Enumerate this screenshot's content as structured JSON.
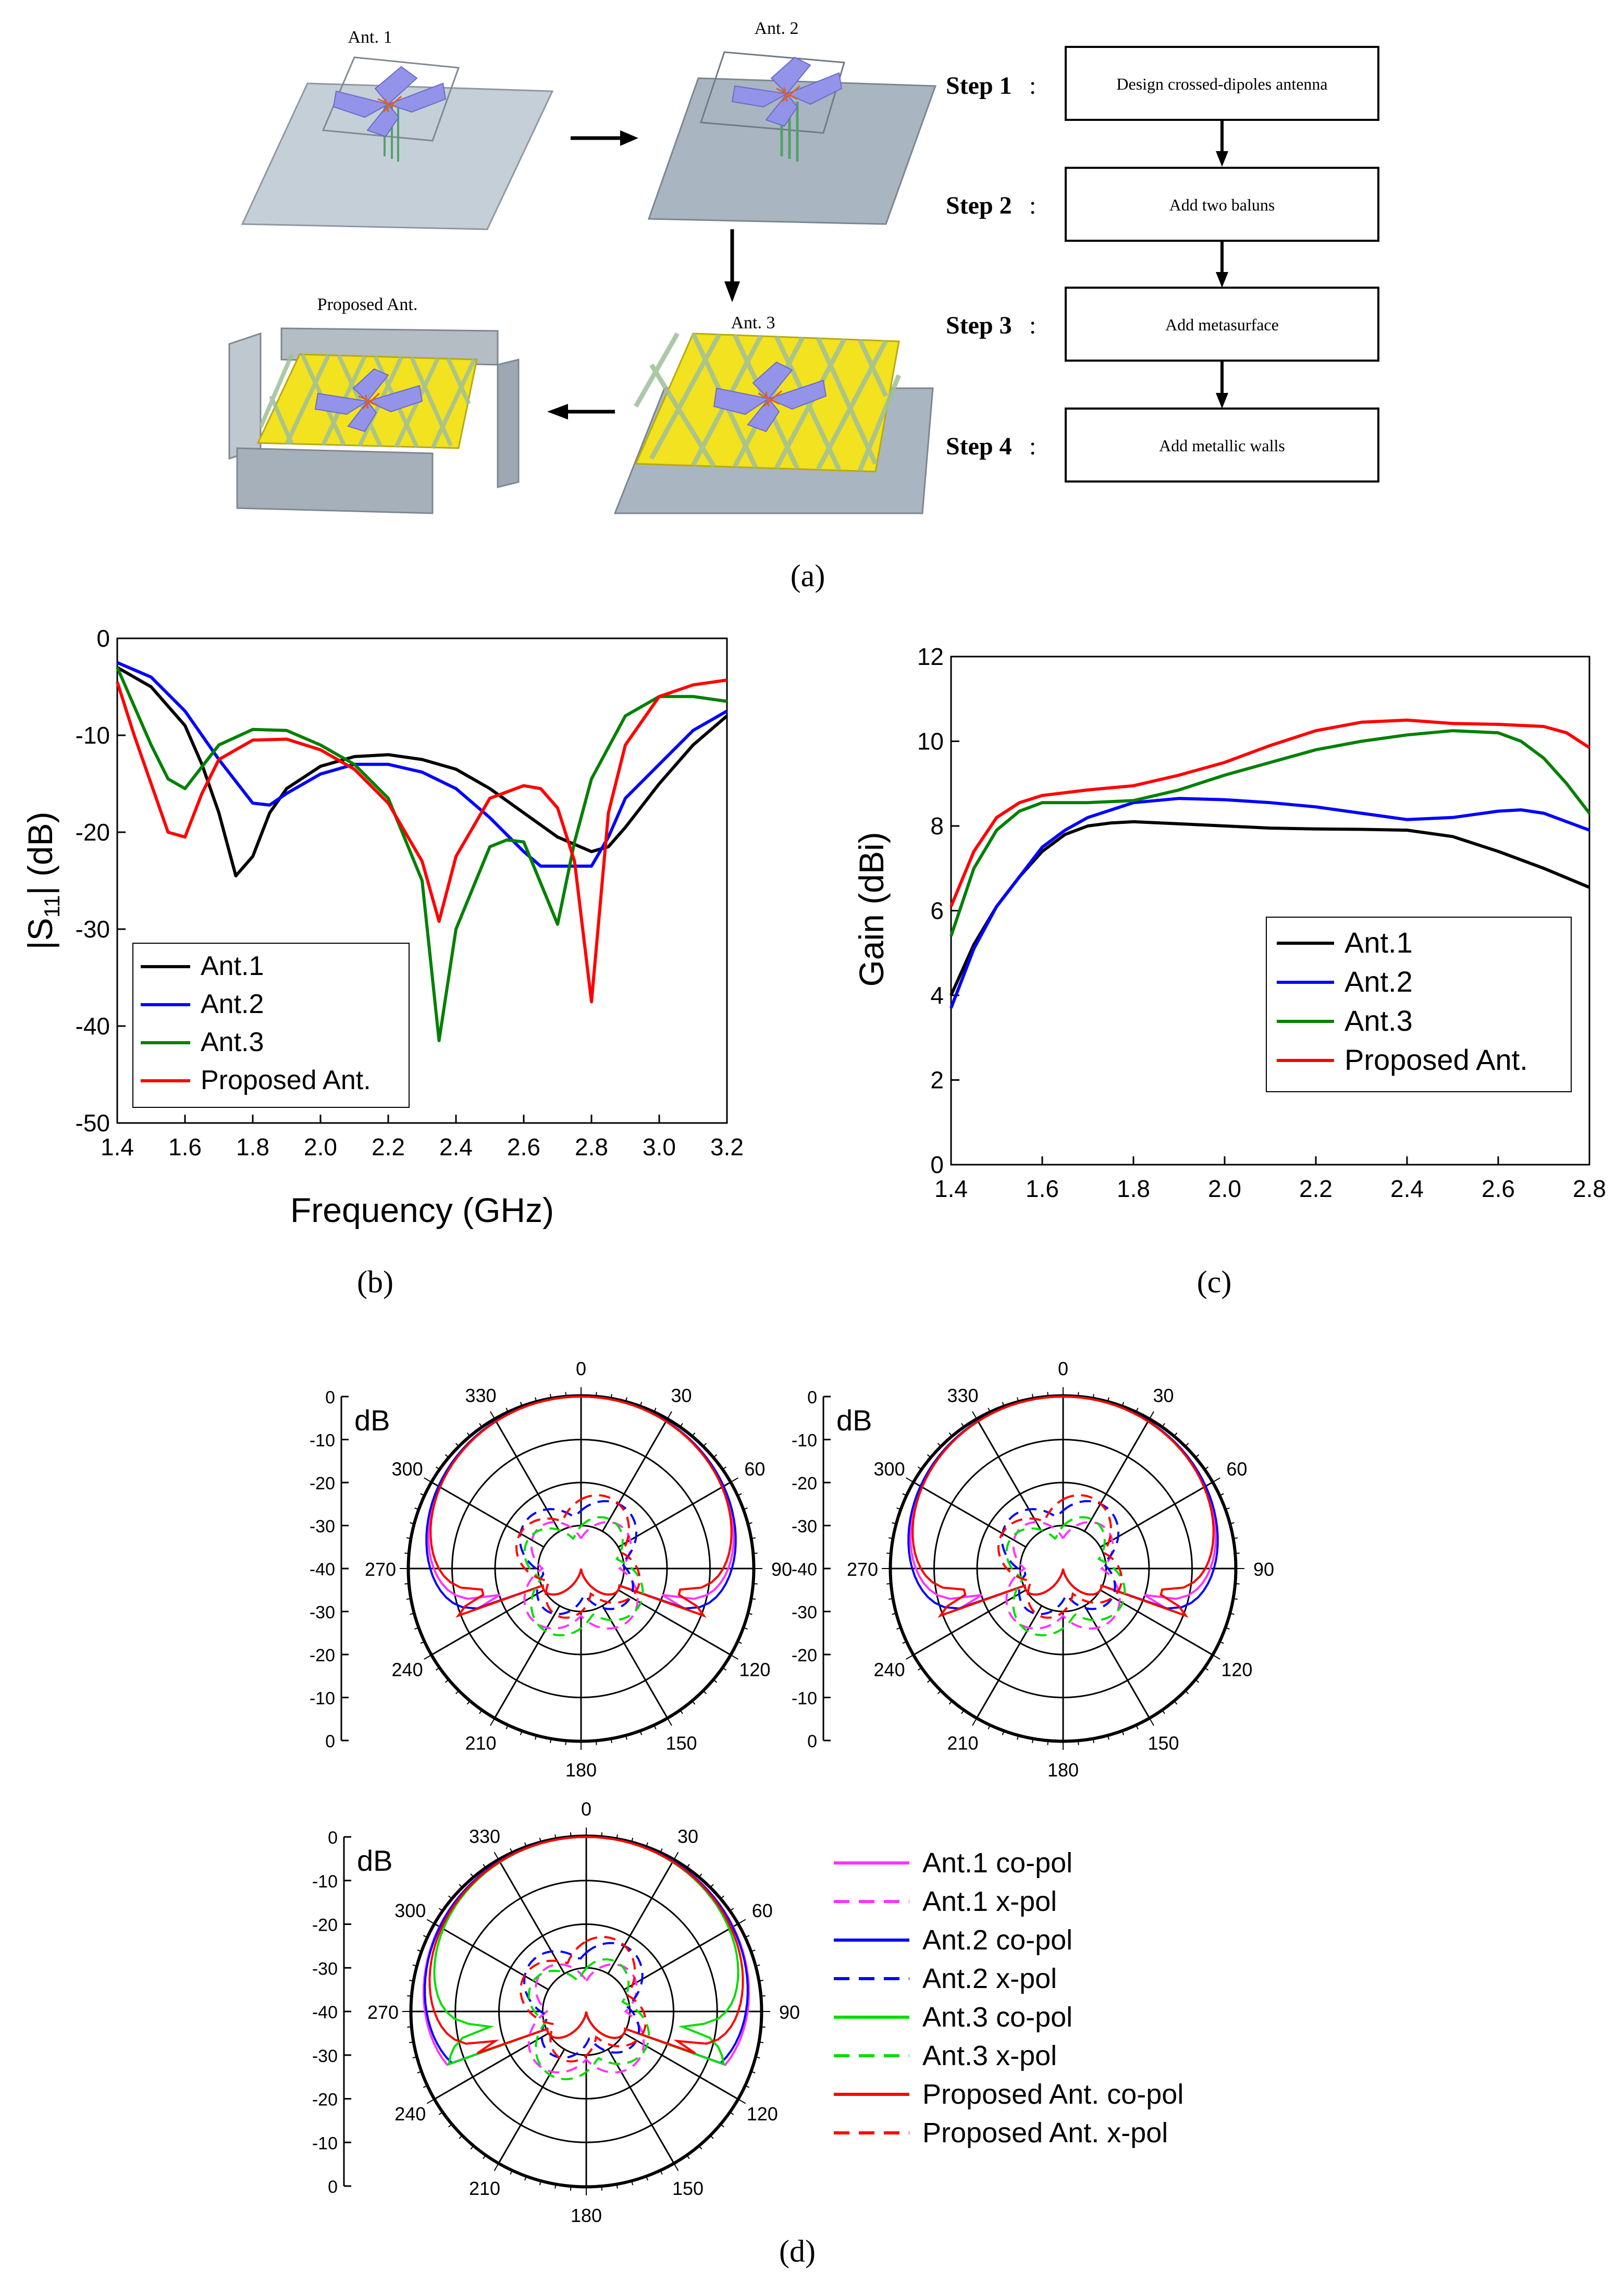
{
  "figure": {
    "panel_labels": {
      "a": "(a)",
      "b": "(b)",
      "c": "(c)",
      "d": "(d)"
    }
  },
  "panel_a": {
    "antenna_labels": {
      "ant1": "Ant. 1",
      "ant2": "Ant. 2",
      "ant3": "Ant. 3",
      "proposed": "Proposed Ant."
    },
    "steps": [
      {
        "label": "Step 1",
        "text": "Design crossed-dipoles antenna"
      },
      {
        "label": "Step 2",
        "text": "Add two baluns"
      },
      {
        "label": "Step 3",
        "text": "Add metasurface"
      },
      {
        "label": "Step 4",
        "text": "Add metallic walls"
      }
    ],
    "colon": ":",
    "colors": {
      "ground": "#b8c3cc",
      "ground_dark": "#8d98a2",
      "dipole": "#8f8fe6",
      "metasurface": "#f2e21f",
      "wall": "#b4bcc4"
    }
  },
  "chart_data": [
    {
      "id": "s11",
      "type": "line",
      "xlabel": "Frequency (GHz)",
      "ylabel_main": "|S",
      "ylabel_sub": "11",
      "ylabel_tail": "| (dB)",
      "xlim": [
        1.4,
        3.2
      ],
      "ylim": [
        -50,
        0
      ],
      "xticks": [
        "1.4",
        "1.6",
        "1.8",
        "2.0",
        "2.2",
        "2.4",
        "2.6",
        "2.8",
        "3.0",
        "3.2"
      ],
      "yticks": [
        "0",
        "-10",
        "-20",
        "-30",
        "-40",
        "-50"
      ],
      "legend_position": "bottom-left",
      "series": [
        {
          "name": "Ant.1",
          "color": "#000000",
          "x": [
            1.4,
            1.5,
            1.6,
            1.65,
            1.7,
            1.75,
            1.8,
            1.85,
            1.9,
            2.0,
            2.1,
            2.2,
            2.3,
            2.4,
            2.5,
            2.6,
            2.7,
            2.8,
            2.85,
            2.9,
            3.0,
            3.1,
            3.2
          ],
          "y": [
            -3,
            -5,
            -9,
            -13,
            -18,
            -24.5,
            -22.5,
            -18,
            -15.5,
            -13.2,
            -12.2,
            -12,
            -12.5,
            -13.5,
            -15.5,
            -18,
            -20.5,
            -22,
            -21.5,
            -19.5,
            -15,
            -11,
            -8
          ]
        },
        {
          "name": "Ant.2",
          "color": "#0000ff",
          "x": [
            1.4,
            1.5,
            1.6,
            1.7,
            1.8,
            1.85,
            1.9,
            2.0,
            2.1,
            2.2,
            2.3,
            2.4,
            2.5,
            2.6,
            2.65,
            2.7,
            2.8,
            2.85,
            2.9,
            3.0,
            3.1,
            3.2
          ],
          "y": [
            -2.5,
            -4,
            -7.5,
            -12.5,
            -17,
            -17.2,
            -16,
            -14,
            -13,
            -13,
            -13.8,
            -15.5,
            -18.5,
            -22,
            -23.5,
            -23.5,
            -23.5,
            -20.5,
            -16.5,
            -13,
            -9.5,
            -7.5
          ]
        },
        {
          "name": "Ant.3",
          "color": "#008000",
          "x": [
            1.4,
            1.45,
            1.5,
            1.55,
            1.6,
            1.7,
            1.8,
            1.9,
            2.0,
            2.1,
            2.2,
            2.3,
            2.35,
            2.4,
            2.5,
            2.55,
            2.6,
            2.7,
            2.75,
            2.8,
            2.9,
            3.0,
            3.1,
            3.2
          ],
          "y": [
            -3,
            -7,
            -11,
            -14.5,
            -15.5,
            -11,
            -9.4,
            -9.5,
            -11,
            -13,
            -16.5,
            -25,
            -41.5,
            -30,
            -21.5,
            -20.8,
            -21,
            -29.5,
            -21,
            -14.5,
            -8,
            -6,
            -6,
            -6.5
          ]
        },
        {
          "name": "Proposed Ant.",
          "color": "#ff0000",
          "x": [
            1.4,
            1.45,
            1.5,
            1.55,
            1.6,
            1.65,
            1.7,
            1.8,
            1.9,
            2.0,
            2.1,
            2.2,
            2.3,
            2.35,
            2.4,
            2.5,
            2.6,
            2.65,
            2.7,
            2.75,
            2.8,
            2.85,
            2.9,
            3.0,
            3.1,
            3.2
          ],
          "y": [
            -4.5,
            -10,
            -15,
            -20,
            -20.5,
            -16,
            -12.5,
            -10.5,
            -10.4,
            -11.5,
            -13.5,
            -17,
            -23,
            -29.2,
            -22.5,
            -16.5,
            -15.2,
            -15.5,
            -17.5,
            -23,
            -37.5,
            -18,
            -11,
            -6,
            -4.8,
            -4.3
          ]
        }
      ]
    },
    {
      "id": "gain",
      "type": "line",
      "xlabel": "",
      "ylabel": "Gain (dBi)",
      "xlim": [
        1.4,
        2.8
      ],
      "ylim": [
        0,
        12
      ],
      "xticks": [
        "1.4",
        "1.6",
        "1.8",
        "2.0",
        "2.2",
        "2.4",
        "2.6",
        "2.8"
      ],
      "yticks": [
        "0",
        "2",
        "4",
        "6",
        "8",
        "10",
        "12"
      ],
      "legend_position": "bottom-right",
      "series": [
        {
          "name": "Ant.1",
          "color": "#000000",
          "x": [
            1.4,
            1.45,
            1.5,
            1.55,
            1.6,
            1.65,
            1.7,
            1.75,
            1.8,
            1.9,
            2.0,
            2.1,
            2.2,
            2.3,
            2.4,
            2.5,
            2.6,
            2.7,
            2.8
          ],
          "y": [
            4.0,
            5.2,
            6.1,
            6.8,
            7.4,
            7.8,
            8.0,
            8.07,
            8.1,
            8.05,
            8.0,
            7.95,
            7.93,
            7.92,
            7.9,
            7.75,
            7.4,
            7.0,
            6.55
          ]
        },
        {
          "name": "Ant.2",
          "color": "#0000ff",
          "x": [
            1.4,
            1.45,
            1.5,
            1.55,
            1.6,
            1.65,
            1.7,
            1.8,
            1.9,
            2.0,
            2.1,
            2.2,
            2.3,
            2.4,
            2.5,
            2.6,
            2.65,
            2.7,
            2.8
          ],
          "y": [
            3.7,
            5.1,
            6.1,
            6.8,
            7.5,
            7.9,
            8.2,
            8.55,
            8.65,
            8.62,
            8.55,
            8.45,
            8.3,
            8.15,
            8.2,
            8.35,
            8.38,
            8.3,
            7.9
          ]
        },
        {
          "name": "Ant.3",
          "color": "#008000",
          "x": [
            1.4,
            1.45,
            1.5,
            1.55,
            1.6,
            1.7,
            1.8,
            1.9,
            2.0,
            2.1,
            2.2,
            2.3,
            2.4,
            2.5,
            2.6,
            2.65,
            2.7,
            2.75,
            2.8
          ],
          "y": [
            5.4,
            7.0,
            7.9,
            8.35,
            8.55,
            8.55,
            8.6,
            8.85,
            9.2,
            9.5,
            9.8,
            10.0,
            10.15,
            10.25,
            10.2,
            10.0,
            9.6,
            9.0,
            8.3
          ]
        },
        {
          "name": "Proposed Ant.",
          "color": "#ff0000",
          "x": [
            1.4,
            1.45,
            1.5,
            1.55,
            1.6,
            1.7,
            1.8,
            1.9,
            2.0,
            2.1,
            2.2,
            2.3,
            2.4,
            2.5,
            2.6,
            2.7,
            2.75,
            2.8
          ],
          "y": [
            6.1,
            7.4,
            8.2,
            8.55,
            8.72,
            8.85,
            8.95,
            9.2,
            9.5,
            9.9,
            10.25,
            10.45,
            10.5,
            10.42,
            10.4,
            10.35,
            10.2,
            9.85
          ]
        }
      ]
    },
    {
      "id": "radiation",
      "type": "polar",
      "rlabel": "dB",
      "angle_labels": [
        "0",
        "30",
        "60",
        "90",
        "120",
        "150",
        "180",
        "210",
        "240",
        "270",
        "300",
        "330"
      ],
      "r_labels_top": [
        "0",
        "-10",
        "-20",
        "-30",
        "-40"
      ],
      "r_labels_bottom": [
        "-30",
        "-20",
        "-10",
        "0"
      ],
      "r_ticks_top_third": [
        "0",
        "-10",
        "-20",
        "-30",
        "-40"
      ],
      "r_ticks_bottom_third": [
        "-30",
        "-20",
        "-10",
        "0"
      ],
      "label_90_third": "90",
      "rlim": [
        -40,
        0
      ],
      "legend": [
        {
          "name": "Ant.1 co-pol",
          "color": "#ff33ff",
          "dash": false
        },
        {
          "name": "Ant.1 x-pol",
          "color": "#ff33ff",
          "dash": true
        },
        {
          "name": "Ant.2 co-pol",
          "color": "#0000ff",
          "dash": false
        },
        {
          "name": "Ant.2 x-pol",
          "color": "#0000ff",
          "dash": true
        },
        {
          "name": "Ant.3 co-pol",
          "color": "#00dd00",
          "dash": false
        },
        {
          "name": "Ant.3 x-pol",
          "color": "#00dd00",
          "dash": true
        },
        {
          "name": "Proposed Ant. co-pol",
          "color": "#ff0000",
          "dash": false
        },
        {
          "name": "Proposed Ant. x-pol",
          "color": "#ff0000",
          "dash": true
        }
      ]
    }
  ]
}
